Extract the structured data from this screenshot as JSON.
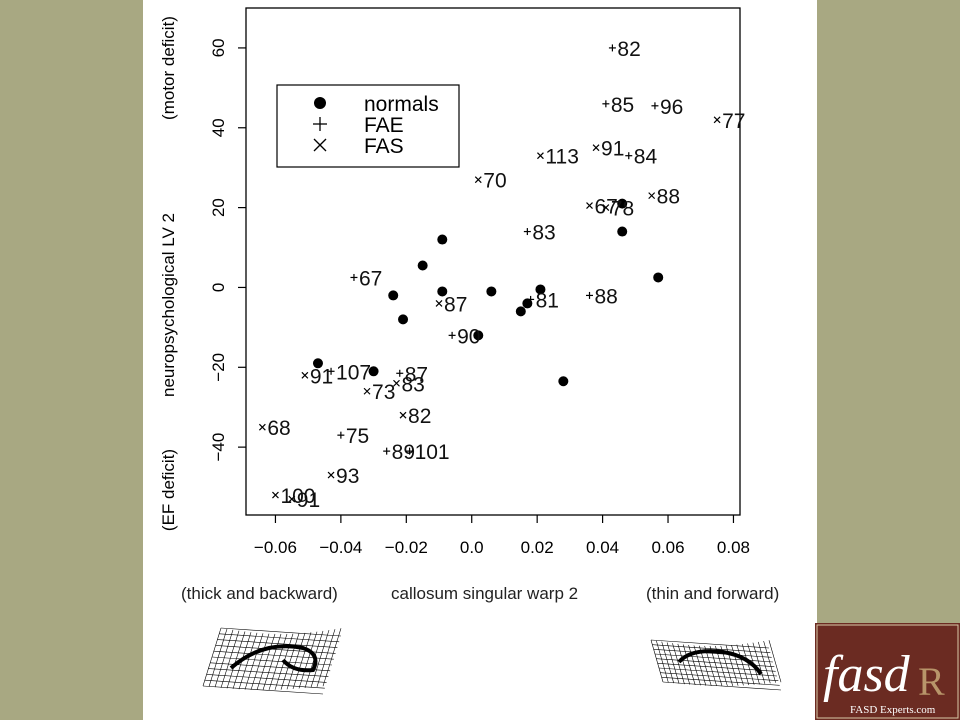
{
  "chart_data": {
    "type": "scatter",
    "xlabel": "callosum singular warp 2",
    "xlabel_left": "(thick and backward)",
    "xlabel_right": "(thin and forward)",
    "ylabel": "neuropsychological LV 2",
    "ylabel_top": "(motor deficit)",
    "ylabel_bottom": "(EF deficit)",
    "xlim": [
      -0.069,
      0.082
    ],
    "ylim": [
      -57,
      70
    ],
    "x_ticks": [
      -0.06,
      -0.04,
      -0.02,
      0.0,
      0.02,
      0.04,
      0.06,
      0.08
    ],
    "x_tick_labels": [
      "−0.06",
      "−0.04",
      "−0.02",
      "0.0",
      "0.02",
      "0.04",
      "0.06",
      "0.08"
    ],
    "y_ticks": [
      -40,
      -20,
      0,
      20,
      40,
      60
    ],
    "y_tick_labels": [
      "−40",
      "−20",
      "0",
      "20",
      "40",
      "60"
    ],
    "grid": false,
    "legend_position": "top-left",
    "series": [
      {
        "name": "normals",
        "marker": "filled-circle",
        "points": [
          {
            "x": -0.009,
            "y": 12
          },
          {
            "x": -0.015,
            "y": 5.5
          },
          {
            "x": -0.024,
            "y": -2
          },
          {
            "x": -0.009,
            "y": -1
          },
          {
            "x": 0.006,
            "y": -1
          },
          {
            "x": 0.021,
            "y": -0.5
          },
          {
            "x": 0.017,
            "y": -4
          },
          {
            "x": 0.015,
            "y": -6
          },
          {
            "x": -0.021,
            "y": -8
          },
          {
            "x": 0.002,
            "y": -12
          },
          {
            "x": -0.047,
            "y": -19
          },
          {
            "x": -0.03,
            "y": -21
          },
          {
            "x": 0.028,
            "y": -23.5
          },
          {
            "x": 0.046,
            "y": 14
          },
          {
            "x": 0.057,
            "y": 2.5
          },
          {
            "x": 0.046,
            "y": 21
          }
        ]
      },
      {
        "name": "FAE",
        "marker": "plus",
        "points": [
          {
            "x": 0.043,
            "y": 60,
            "label": "82"
          },
          {
            "x": 0.041,
            "y": 46,
            "label": "85"
          },
          {
            "x": 0.056,
            "y": 45.5,
            "label": "96"
          },
          {
            "x": 0.048,
            "y": 33,
            "label": "84"
          },
          {
            "x": 0.017,
            "y": 14,
            "label": "83"
          },
          {
            "x": -0.036,
            "y": 2.5,
            "label": "67"
          },
          {
            "x": 0.036,
            "y": -2,
            "label": "88"
          },
          {
            "x": 0.018,
            "y": -3,
            "label": "81"
          },
          {
            "x": -0.006,
            "y": -12,
            "label": "90"
          },
          {
            "x": -0.022,
            "y": -21.5,
            "label": "87"
          },
          {
            "x": -0.026,
            "y": -41,
            "label": "89"
          },
          {
            "x": -0.04,
            "y": -37,
            "label": "75"
          },
          {
            "x": -0.019,
            "y": -41,
            "label": "101"
          },
          {
            "x": -0.043,
            "y": -21,
            "label": "107"
          }
        ]
      },
      {
        "name": "FAS",
        "marker": "cross",
        "points": [
          {
            "x": 0.075,
            "y": 42,
            "label": "77"
          },
          {
            "x": 0.038,
            "y": 35,
            "label": "91"
          },
          {
            "x": 0.021,
            "y": 33,
            "label": "113"
          },
          {
            "x": 0.002,
            "y": 27,
            "label": "70"
          },
          {
            "x": 0.055,
            "y": 23,
            "label": "88"
          },
          {
            "x": 0.036,
            "y": 20.5,
            "label": "67"
          },
          {
            "x": 0.041,
            "y": 20,
            "label": "78"
          },
          {
            "x": -0.01,
            "y": -4,
            "label": "87"
          },
          {
            "x": -0.051,
            "y": -22,
            "label": "91"
          },
          {
            "x": -0.032,
            "y": -26,
            "label": "73"
          },
          {
            "x": -0.023,
            "y": -24,
            "label": "83"
          },
          {
            "x": -0.021,
            "y": -32,
            "label": "82"
          },
          {
            "x": -0.064,
            "y": -35,
            "label": "68"
          },
          {
            "x": -0.043,
            "y": -47,
            "label": "93"
          },
          {
            "x": -0.055,
            "y": -53,
            "label": "91"
          },
          {
            "x": -0.06,
            "y": -52,
            "label": "100"
          }
        ]
      }
    ]
  },
  "logo": {
    "line1": "fasd",
    "line2": "R",
    "caption": "FASD Experts.com"
  }
}
